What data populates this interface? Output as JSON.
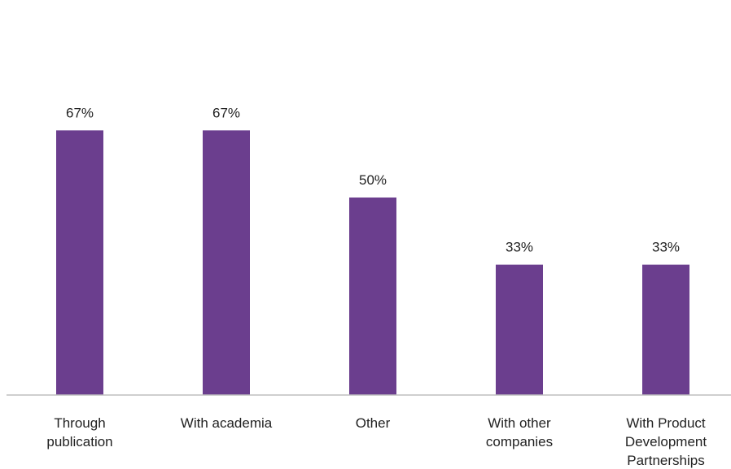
{
  "chart_data": {
    "type": "bar",
    "categories": [
      [
        "Through",
        "publication"
      ],
      [
        "With academia"
      ],
      [
        "Other"
      ],
      [
        "With other",
        "companies"
      ],
      [
        "With Product",
        "Development",
        "Partnerships"
      ]
    ],
    "values": [
      67,
      67,
      50,
      33,
      33
    ],
    "value_labels": [
      "67%",
      "67%",
      "50%",
      "33%",
      "33%"
    ],
    "bar_color": "#6B3E8E",
    "axis_color": "#BFBFBF",
    "grid": false,
    "legend": "none",
    "title": "",
    "xlabel": "",
    "ylabel": "",
    "ylim": [
      0,
      100
    ]
  }
}
